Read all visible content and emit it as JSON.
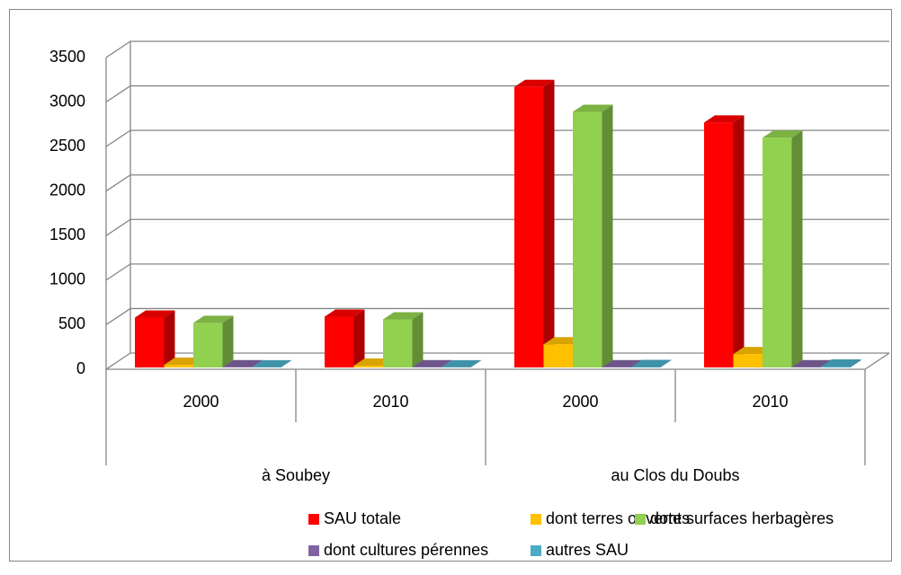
{
  "chart_data": {
    "type": "bar3d",
    "categories": [
      "2000",
      "2010",
      "2000",
      "2010"
    ],
    "groups": [
      "à Soubey",
      "au Clos du Doubs"
    ],
    "series": [
      {
        "name": "SAU totale",
        "color": "#ff0000",
        "values": [
          560,
          570,
          3150,
          2750
        ]
      },
      {
        "name": "dont terres ouvertes",
        "color": "#ffc000",
        "values": [
          30,
          20,
          260,
          150
        ]
      },
      {
        "name": "dont surfaces herbagères",
        "color": "#92d050",
        "values": [
          500,
          540,
          2870,
          2580
        ]
      },
      {
        "name": "dont cultures pérennes",
        "color": "#8064a2",
        "values": [
          2,
          2,
          3,
          3
        ]
      },
      {
        "name": "autres SAU",
        "color": "#4bacc6",
        "values": [
          1,
          1,
          5,
          10
        ]
      }
    ],
    "ylim": [
      0,
      3500
    ],
    "yticks": [
      0,
      500,
      1000,
      1500,
      2000,
      2500,
      3000,
      3500
    ],
    "grid": true
  }
}
